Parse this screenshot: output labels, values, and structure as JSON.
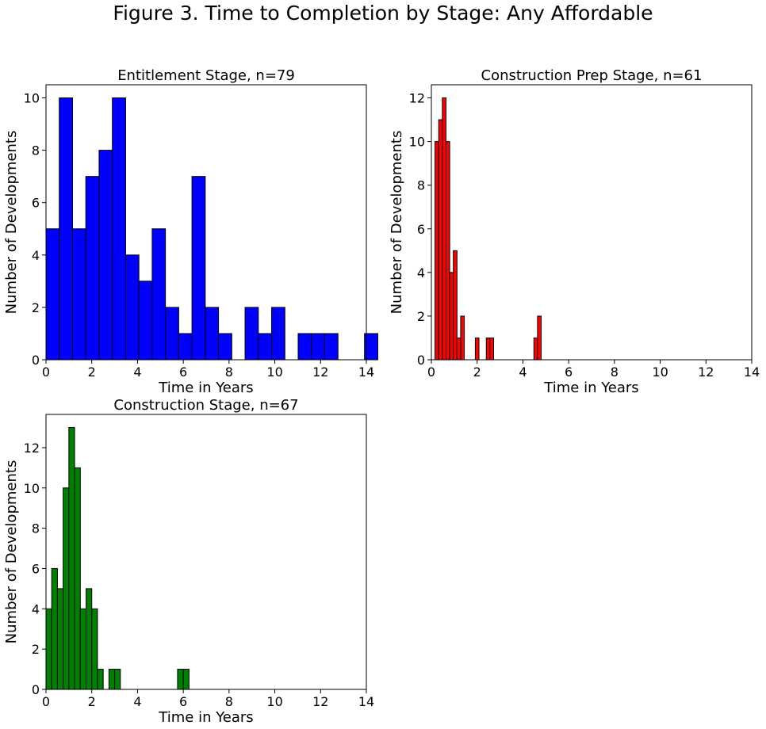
{
  "figure_title": "Figure 3. Time to Completion by Stage: Any Affordable",
  "chart_data": [
    {
      "type": "bar",
      "title": "Entitlement Stage, n=79",
      "xlabel": "Time in Years",
      "ylabel": "Number of Developments",
      "xlim": [
        0,
        14
      ],
      "ylim": [
        0,
        10.5
      ],
      "xticks": [
        0,
        2,
        4,
        6,
        8,
        10,
        12,
        14
      ],
      "yticks": [
        0,
        2,
        4,
        6,
        8,
        10
      ],
      "color": "#0000ff",
      "bin_width": 0.58,
      "bins": [
        {
          "x": 0.0,
          "count": 5
        },
        {
          "x": 0.58,
          "count": 10
        },
        {
          "x": 1.16,
          "count": 5
        },
        {
          "x": 1.74,
          "count": 7
        },
        {
          "x": 2.32,
          "count": 8
        },
        {
          "x": 2.9,
          "count": 10
        },
        {
          "x": 3.48,
          "count": 4
        },
        {
          "x": 4.06,
          "count": 3
        },
        {
          "x": 4.64,
          "count": 5
        },
        {
          "x": 5.22,
          "count": 2
        },
        {
          "x": 5.8,
          "count": 1
        },
        {
          "x": 6.38,
          "count": 7
        },
        {
          "x": 6.96,
          "count": 2
        },
        {
          "x": 7.54,
          "count": 1
        },
        {
          "x": 8.7,
          "count": 2
        },
        {
          "x": 9.28,
          "count": 1
        },
        {
          "x": 9.86,
          "count": 2
        },
        {
          "x": 11.02,
          "count": 1
        },
        {
          "x": 11.6,
          "count": 1
        },
        {
          "x": 12.18,
          "count": 1
        },
        {
          "x": 13.92,
          "count": 1
        }
      ]
    },
    {
      "type": "bar",
      "title": "Construction Prep Stage, n=61",
      "xlabel": "Time in Years",
      "ylabel": "Number of Developments",
      "xlim": [
        0,
        14
      ],
      "ylim": [
        0,
        12.6
      ],
      "xticks": [
        0,
        2,
        4,
        6,
        8,
        10,
        12,
        14
      ],
      "yticks": [
        0,
        2,
        4,
        6,
        8,
        10,
        12
      ],
      "color": "#ff0000",
      "bin_width": 0.16,
      "bins": [
        {
          "x": 0.16,
          "count": 10
        },
        {
          "x": 0.32,
          "count": 11
        },
        {
          "x": 0.48,
          "count": 12
        },
        {
          "x": 0.64,
          "count": 10
        },
        {
          "x": 0.8,
          "count": 4
        },
        {
          "x": 0.96,
          "count": 5
        },
        {
          "x": 1.12,
          "count": 1
        },
        {
          "x": 1.28,
          "count": 2
        },
        {
          "x": 1.92,
          "count": 1
        },
        {
          "x": 2.4,
          "count": 1
        },
        {
          "x": 2.56,
          "count": 1
        },
        {
          "x": 4.48,
          "count": 1
        },
        {
          "x": 4.64,
          "count": 2
        }
      ]
    },
    {
      "type": "bar",
      "title": "Construction Stage, n=67",
      "xlabel": "Time in Years",
      "ylabel": "Number of Developments",
      "xlim": [
        0,
        14
      ],
      "ylim": [
        0,
        13.65
      ],
      "xticks": [
        0,
        2,
        4,
        6,
        8,
        10,
        12,
        14
      ],
      "yticks": [
        0,
        2,
        4,
        6,
        8,
        10,
        12
      ],
      "color": "#008000",
      "bin_width": 0.25,
      "bins": [
        {
          "x": 0.0,
          "count": 4
        },
        {
          "x": 0.25,
          "count": 6
        },
        {
          "x": 0.5,
          "count": 5
        },
        {
          "x": 0.75,
          "count": 10
        },
        {
          "x": 1.0,
          "count": 13
        },
        {
          "x": 1.25,
          "count": 11
        },
        {
          "x": 1.5,
          "count": 4
        },
        {
          "x": 1.75,
          "count": 5
        },
        {
          "x": 2.0,
          "count": 4
        },
        {
          "x": 2.25,
          "count": 1
        },
        {
          "x": 2.75,
          "count": 1
        },
        {
          "x": 3.0,
          "count": 1
        },
        {
          "x": 5.75,
          "count": 1
        },
        {
          "x": 6.0,
          "count": 1
        }
      ]
    }
  ]
}
